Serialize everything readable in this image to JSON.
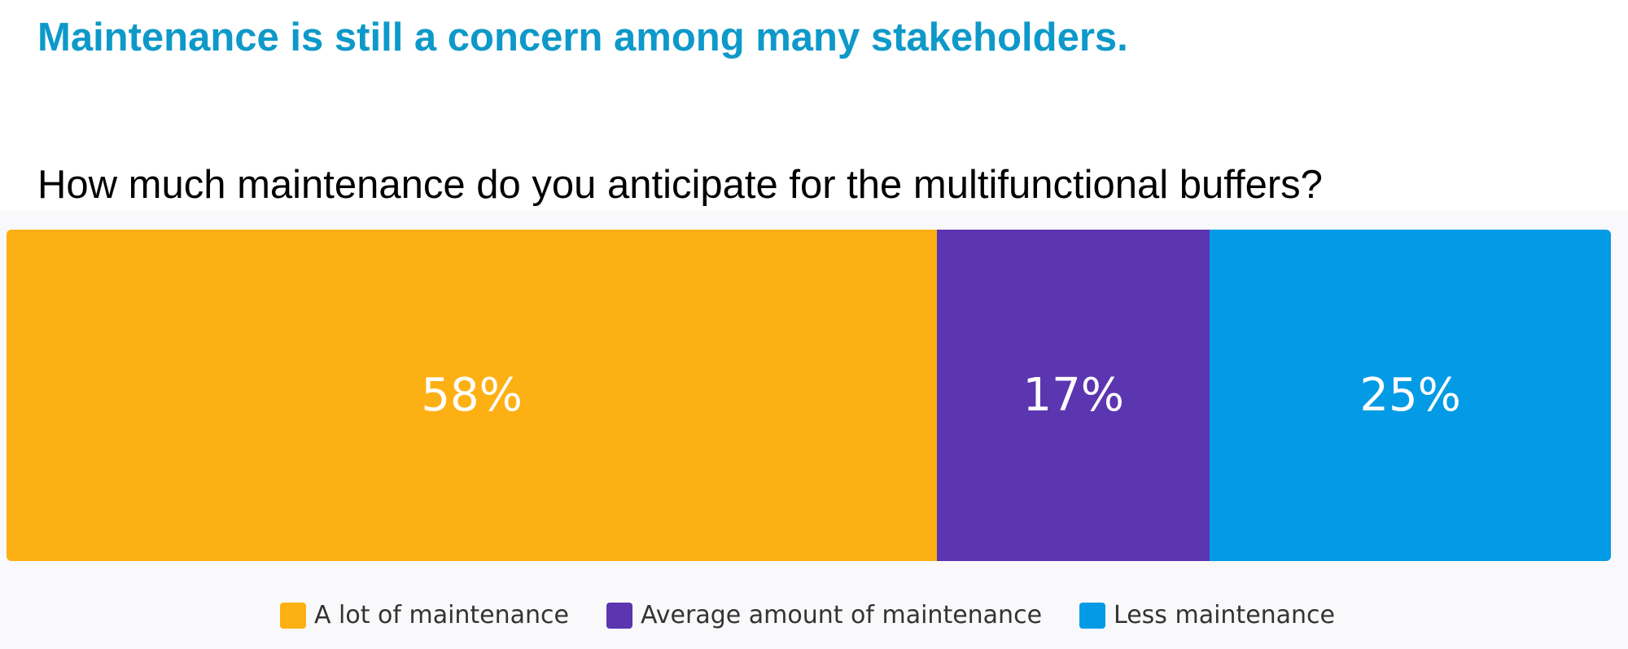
{
  "headline": "Maintenance is still a concern among many stakeholders.",
  "chart_data": {
    "type": "bar",
    "orientation": "horizontal-stacked-100",
    "title": "How much maintenance do you anticipate for the multifunctional buffers?",
    "categories": [
      "A lot of maintenance",
      "Average amount of maintenance",
      "Less maintenance"
    ],
    "values": [
      58,
      17,
      25
    ],
    "labels": [
      "58%",
      "17%",
      "25%"
    ],
    "colors": [
      "#fdb013",
      "#5c35b0",
      "#039be5"
    ],
    "unit": "%",
    "legend_position": "bottom",
    "grid": false
  }
}
